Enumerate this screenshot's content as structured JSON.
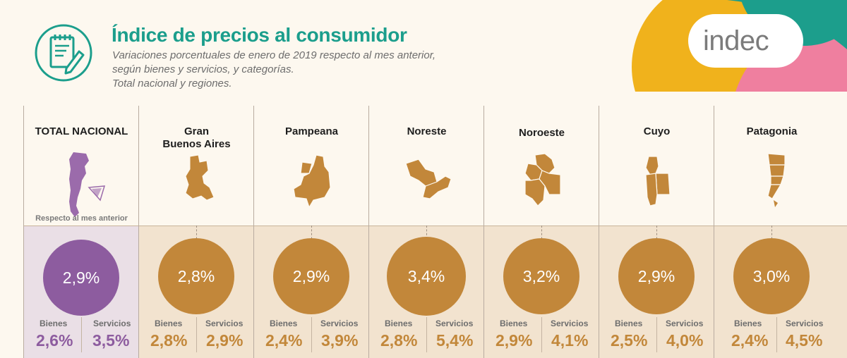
{
  "header": {
    "title": "Índice de precios al consumidor",
    "subtitle_lines": [
      "Variaciones porcentuales de enero de 2019 respecto al mes anterior,",
      "según bienes y servicios, y categorías.",
      "Total nacional y regiones."
    ],
    "icon": "notepad-pencil-icon"
  },
  "brand": {
    "logo_text": "indec",
    "colors": {
      "yellow": "#f0b21c",
      "teal": "#1c9e8c",
      "pink": "#ef7f9f"
    }
  },
  "colors": {
    "total": "#8d5c9f",
    "region": "#c2873a",
    "map_total": "#9b6bab",
    "map_region": "#c2873a",
    "title": "#1b9e8c"
  },
  "respecto_label": "Respecto al mes anterior",
  "regions": [
    {
      "name_lines": [
        "TOTAL NACIONAL"
      ],
      "total": "2,9%",
      "bienes_label": "Bienes",
      "bienes": "2,6%",
      "servicios_label": "Servicios",
      "servicios": "3,5%"
    },
    {
      "name_lines": [
        "Gran",
        "Buenos Aires"
      ],
      "total": "2,8%",
      "bienes_label": "Bienes",
      "bienes": "2,8%",
      "servicios_label": "Servicios",
      "servicios": "2,9%"
    },
    {
      "name_lines": [
        "Pampeana"
      ],
      "total": "2,9%",
      "bienes_label": "Bienes",
      "bienes": "2,4%",
      "servicios_label": "Servicios",
      "servicios": "3,9%"
    },
    {
      "name_lines": [
        "Noreste"
      ],
      "total": "3,4%",
      "bienes_label": "Bienes",
      "bienes": "2,8%",
      "servicios_label": "Servicios",
      "servicios": "5,4%"
    },
    {
      "name_lines": [
        "Noroeste"
      ],
      "total": "3,2%",
      "bienes_label": "Bienes",
      "bienes": "2,9%",
      "servicios_label": "Servicios",
      "servicios": "4,1%"
    },
    {
      "name_lines": [
        "Cuyo"
      ],
      "total": "2,9%",
      "bienes_label": "Bienes",
      "bienes": "2,5%",
      "servicios_label": "Servicios",
      "servicios": "4,0%"
    },
    {
      "name_lines": [
        "Patagonia"
      ],
      "total": "3,0%",
      "bienes_label": "Bienes",
      "bienes": "2,4%",
      "servicios_label": "Servicios",
      "servicios": "4,5%"
    }
  ]
}
